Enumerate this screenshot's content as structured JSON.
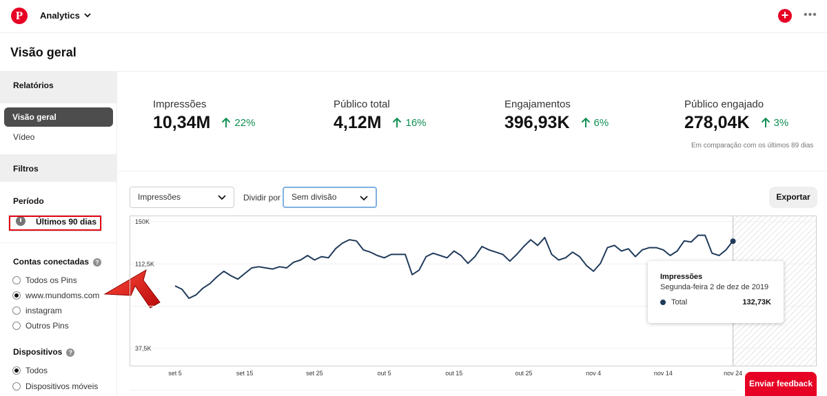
{
  "header": {
    "logo": "P",
    "menu_label": "Analytics",
    "add_label": "+",
    "more_label": "•••"
  },
  "page": {
    "title": "Visão geral"
  },
  "sidebar": {
    "reports_heading": "Relatórios",
    "report_items": [
      "Visão geral",
      "Vídeo"
    ],
    "filters_heading": "Filtros",
    "period_label": "Período",
    "period_value": "Últimos 90 dias",
    "accounts_label": "Contas conectadas",
    "accounts_options": [
      "Todos os Pins",
      "www.mundoms.com",
      "instagram",
      "Outros Pins"
    ],
    "accounts_selected": "www.mundoms.com",
    "devices_label": "Dispositivos",
    "devices_options": [
      "Todos",
      "Dispositivos móveis"
    ],
    "devices_selected": "Todos",
    "help_icon": "?"
  },
  "metrics": [
    {
      "label": "Impressões",
      "value": "10,34M",
      "delta": "22%"
    },
    {
      "label": "Público total",
      "value": "4,12M",
      "delta": "16%"
    },
    {
      "label": "Engajamentos",
      "value": "396,93K",
      "delta": "6%"
    },
    {
      "label": "Público engajado",
      "value": "278,04K",
      "delta": "3%"
    }
  ],
  "compare_note": "Em comparação com os últimos 89 dias",
  "controls": {
    "metric_select": "Impressões",
    "divide_label": "Dividir por",
    "divide_select": "Sem divisão",
    "export_label": "Exportar"
  },
  "tooltip": {
    "title": "Impressões",
    "date": "Segunda-feira 2 de dez de 2019",
    "series": "Total",
    "value": "132,73K"
  },
  "feedback_label": "Enviar feedback",
  "colors": {
    "brand": "#e60023",
    "line": "#1f3a5a",
    "positive": "#0f8f52"
  },
  "chart_data": {
    "type": "line",
    "ylim": [
      0,
      150000
    ],
    "ytick_labels": [
      "150K",
      "112,5K",
      "37,5K"
    ],
    "yticks": [
      150000,
      112500,
      37500
    ],
    "xtick_labels": [
      "set 5",
      "set 15",
      "set 25",
      "out 5",
      "out 15",
      "out 25",
      "nov 4",
      "nov 14",
      "nov 24"
    ],
    "xticks": [
      0,
      10,
      20,
      30,
      40,
      50,
      60,
      70,
      80
    ],
    "series": [
      {
        "name": "Total",
        "values": [
          93000,
          90000,
          82000,
          85000,
          91000,
          95000,
          101000,
          106000,
          102000,
          99000,
          104000,
          109000,
          110000,
          109000,
          108000,
          110000,
          109000,
          114000,
          116000,
          120000,
          116000,
          119000,
          118000,
          126000,
          131000,
          134000,
          133000,
          125000,
          123000,
          120000,
          118000,
          121000,
          121000,
          121000,
          103000,
          107000,
          119000,
          122000,
          120000,
          118000,
          124000,
          120000,
          113000,
          119000,
          128000,
          125000,
          123000,
          121000,
          115000,
          121000,
          128000,
          134000,
          129000,
          136000,
          121000,
          116000,
          118000,
          123000,
          119000,
          111000,
          106000,
          113000,
          127000,
          129000,
          124000,
          126000,
          119000,
          125000,
          127000,
          127000,
          125000,
          120000,
          124000,
          133000,
          132000,
          138000,
          138000,
          122000,
          120000,
          125000,
          133000
        ]
      }
    ],
    "highlight_point": {
      "x": 80,
      "y": 132730
    },
    "grid": "horizontal",
    "legend": "none"
  }
}
